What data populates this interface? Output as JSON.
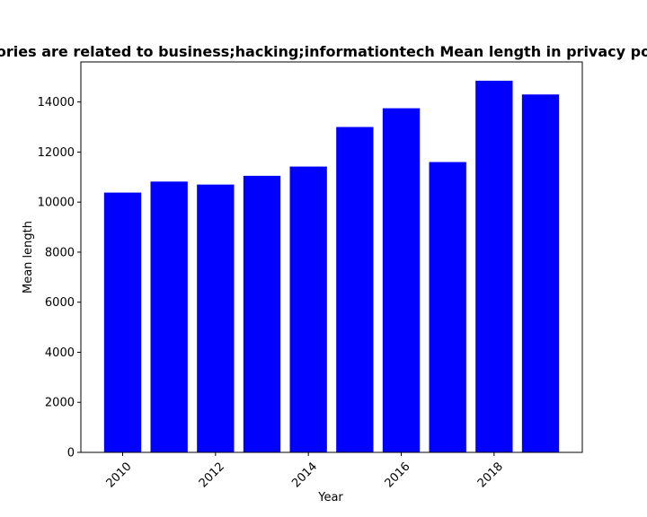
{
  "chart_data": {
    "type": "bar",
    "title": "ories are related to business;hacking;informationtech Mean length in privacy po",
    "xlabel": "Year",
    "ylabel": "Mean length",
    "x": [
      2010,
      2011,
      2012,
      2013,
      2014,
      2015,
      2016,
      2017,
      2018,
      2019
    ],
    "values": [
      10380,
      10820,
      10700,
      11050,
      11420,
      13000,
      13750,
      11600,
      14850,
      14300
    ],
    "xticks": [
      "2010",
      "2012",
      "2014",
      "2016",
      "2018"
    ],
    "yticks": [
      "0",
      "2000",
      "4000",
      "6000",
      "8000",
      "10000",
      "12000",
      "14000"
    ],
    "xlim": [
      2009.1,
      2019.9
    ],
    "ylim": [
      0,
      15600
    ],
    "bar_color": "#0000ff",
    "grid": false,
    "legend": "none"
  }
}
